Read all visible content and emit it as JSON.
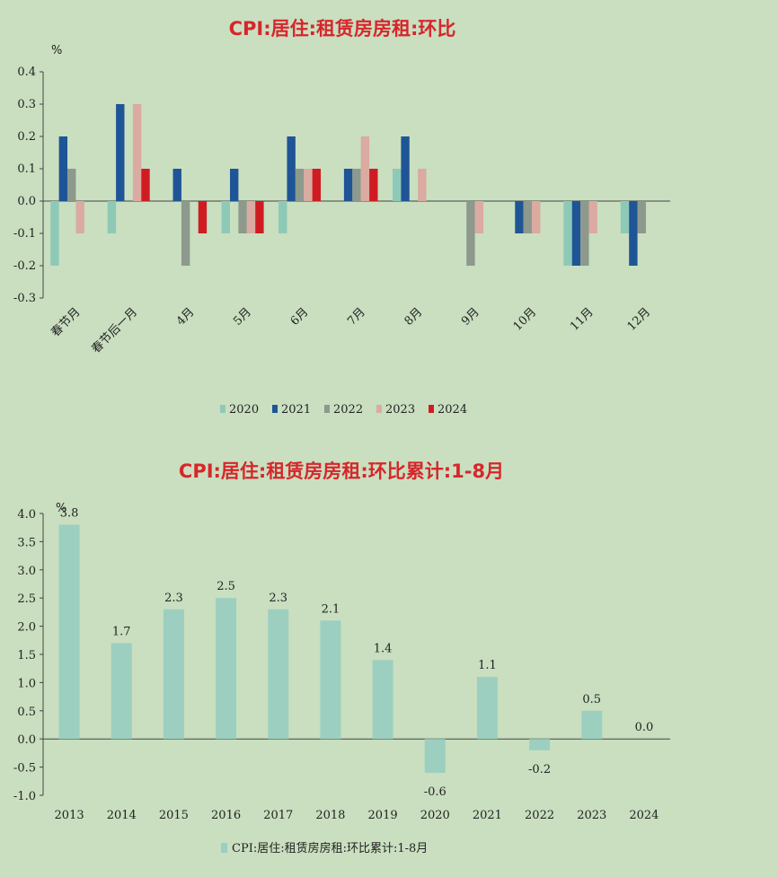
{
  "chart_data": [
    {
      "type": "bar",
      "title": "CPI:居住:租赁房房租:环比",
      "unit_label": "%",
      "categories": [
        "春节月",
        "春节后一月",
        "4月",
        "5月",
        "6月",
        "7月",
        "8月",
        "9月",
        "10月",
        "11月",
        "12月"
      ],
      "series": [
        {
          "name": "2020",
          "color": "#8ec9b8",
          "values": [
            -0.2,
            -0.1,
            null,
            -0.1,
            -0.1,
            null,
            0.1,
            null,
            null,
            -0.2,
            -0.1
          ]
        },
        {
          "name": "2021",
          "color": "#1f5596",
          "values": [
            0.2,
            0.3,
            0.1,
            0.1,
            0.2,
            0.1,
            0.2,
            null,
            -0.1,
            -0.2,
            -0.2
          ]
        },
        {
          "name": "2022",
          "color": "#8d998c",
          "values": [
            0.1,
            null,
            -0.2,
            -0.1,
            0.1,
            0.1,
            null,
            -0.2,
            -0.1,
            -0.2,
            -0.1
          ]
        },
        {
          "name": "2023",
          "color": "#dbaaa1",
          "values": [
            -0.1,
            0.3,
            null,
            -0.1,
            0.1,
            0.2,
            0.1,
            -0.1,
            -0.1,
            -0.1,
            null
          ]
        },
        {
          "name": "2024",
          "color": "#cf1c22",
          "values": [
            null,
            0.1,
            -0.1,
            -0.1,
            0.1,
            0.1,
            null,
            null,
            null,
            null,
            null
          ]
        }
      ],
      "yticks": [
        "0.4",
        "0.3",
        "0.2",
        "0.1",
        "0.0",
        "-0.1",
        "-0.2",
        "-0.3"
      ],
      "ylim": [
        -0.3,
        0.4
      ],
      "legend_position": "bottom"
    },
    {
      "type": "bar",
      "title": "CPI:居住:租赁房房租:环比累计:1-8月",
      "unit_label": "%",
      "categories": [
        "2013",
        "2014",
        "2015",
        "2016",
        "2017",
        "2018",
        "2019",
        "2020",
        "2021",
        "2022",
        "2023",
        "2024"
      ],
      "series": [
        {
          "name": "CPI:居住:租赁房房租:环比累计:1-8月",
          "color": "#9ccfbf",
          "values": [
            3.8,
            1.7,
            2.3,
            2.5,
            2.3,
            2.1,
            1.4,
            -0.6,
            1.1,
            -0.2,
            0.5,
            0.0
          ]
        }
      ],
      "data_labels": [
        "3.8",
        "1.7",
        "2.3",
        "2.5",
        "2.3",
        "2.1",
        "1.4",
        "-0.6",
        "1.1",
        "-0.2",
        "0.5",
        "0.0"
      ],
      "yticks": [
        "4.0",
        "3.5",
        "3.0",
        "2.5",
        "2.0",
        "1.5",
        "1.0",
        "0.5",
        "0.0",
        "-0.5",
        "-1.0"
      ],
      "ylim": [
        -1.0,
        4.0
      ],
      "legend_position": "bottom"
    }
  ]
}
